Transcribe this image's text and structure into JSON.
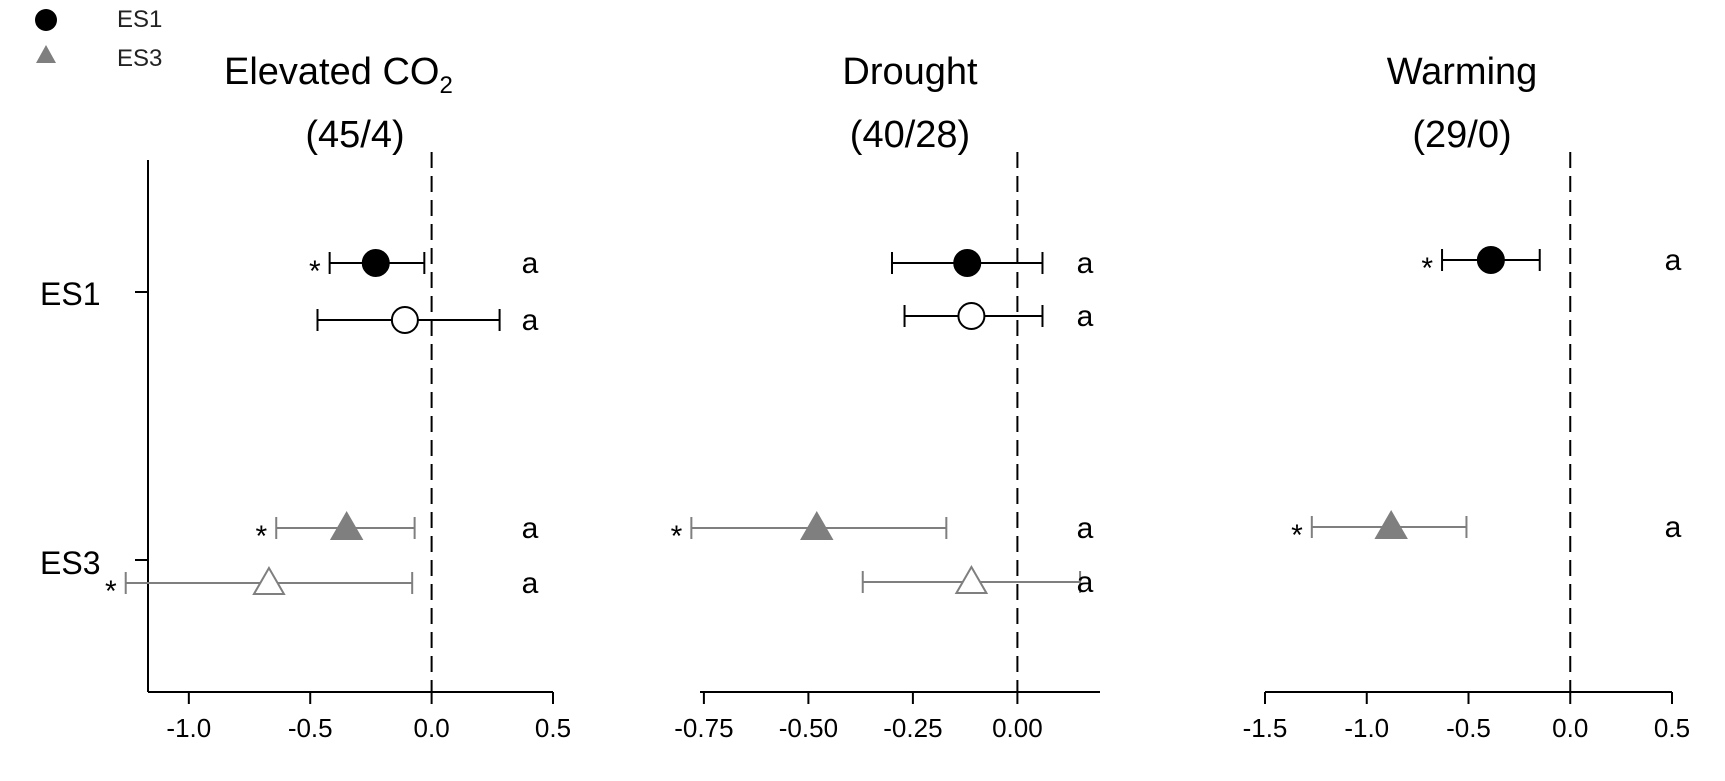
{
  "legend": {
    "items": [
      {
        "label": "ES1",
        "marker": "circle",
        "color": "#000000"
      },
      {
        "label": "ES3",
        "marker": "triangle",
        "color": "#7f7f7f"
      }
    ]
  },
  "row_labels": [
    "ES1",
    "ES3"
  ],
  "colors": {
    "es1": "#000000",
    "es3": "#7f7f7f",
    "open_fill": "#ffffff"
  },
  "chart_data": [
    {
      "type": "scatter",
      "title_main": "Elevated CO",
      "title_sub": "2",
      "title_counts": "(45/4)",
      "xlim": [
        -1.3,
        0.5
      ],
      "ticks": [
        -1.0,
        -0.5,
        0.0,
        0.5
      ],
      "tick_labels": [
        "-1.0",
        "-0.5",
        "0.0",
        "0.5"
      ],
      "reference_line": 0,
      "points": [
        {
          "group": "ES1",
          "filled": true,
          "value": -0.23,
          "ci": [
            -0.42,
            -0.03
          ],
          "star": "*",
          "letter": "a"
        },
        {
          "group": "ES1",
          "filled": false,
          "value": -0.11,
          "ci": [
            -0.47,
            0.28
          ],
          "star": "",
          "letter": "a"
        },
        {
          "group": "ES3",
          "filled": true,
          "value": -0.35,
          "ci": [
            -0.64,
            -0.07
          ],
          "star": "*",
          "letter": "a"
        },
        {
          "group": "ES3",
          "filled": false,
          "value": -0.67,
          "ci": [
            -1.26,
            -0.08
          ],
          "star": "*",
          "letter": "a"
        }
      ]
    },
    {
      "type": "scatter",
      "title_main": "Drought",
      "title_sub": "",
      "title_counts": "(40/28)",
      "xlim": [
        -0.8,
        0.2
      ],
      "ticks": [
        -0.75,
        -0.5,
        -0.25,
        0.0
      ],
      "tick_labels": [
        "-0.75",
        "-0.50",
        "-0.25",
        "0.00"
      ],
      "reference_line": 0,
      "points": [
        {
          "group": "ES1",
          "filled": true,
          "value": -0.12,
          "ci": [
            -0.3,
            0.06
          ],
          "star": "",
          "letter": "a"
        },
        {
          "group": "ES1",
          "filled": false,
          "value": -0.11,
          "ci": [
            -0.27,
            0.06
          ],
          "star": "",
          "letter": "a"
        },
        {
          "group": "ES3",
          "filled": true,
          "value": -0.48,
          "ci": [
            -0.78,
            -0.17
          ],
          "star": "*",
          "letter": "a"
        },
        {
          "group": "ES3",
          "filled": false,
          "value": -0.11,
          "ci": [
            -0.37,
            0.15
          ],
          "star": "",
          "letter": "a"
        }
      ]
    },
    {
      "type": "scatter",
      "title_main": "Warming",
      "title_sub": "",
      "title_counts": "(29/0)",
      "xlim": [
        -1.5,
        0.5
      ],
      "ticks": [
        -1.5,
        -1.0,
        -0.5,
        0.0,
        0.5
      ],
      "tick_labels": [
        "-1.5",
        "-1.0",
        "-0.5",
        "0.0",
        "0.5"
      ],
      "reference_line": 0,
      "points": [
        {
          "group": "ES1",
          "filled": true,
          "value": -0.39,
          "ci": [
            -0.63,
            -0.15
          ],
          "star": "*",
          "letter": "a"
        },
        {
          "group": "ES3",
          "filled": true,
          "value": -0.88,
          "ci": [
            -1.27,
            -0.51
          ],
          "star": "*",
          "letter": "a"
        }
      ]
    }
  ]
}
